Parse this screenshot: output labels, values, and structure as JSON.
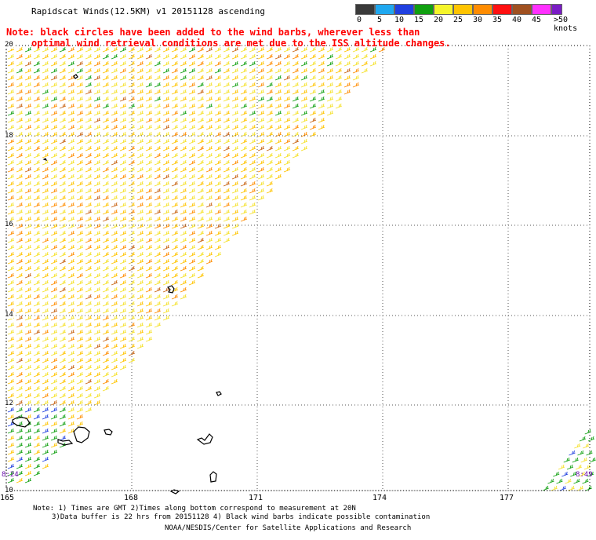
{
  "title": "Rapidscat Winds(12.5KM) v1 20151128 ascending",
  "note": {
    "line1": "Note: black circles have been added to the wind barbs, wherever less than",
    "line2": "optimal wind retrieval conditions are met due to the ISS altitude changes."
  },
  "legend": {
    "labels": [
      "0",
      "5",
      "10",
      "15",
      "20",
      "25",
      "30",
      "35",
      "40",
      "45",
      ">50 knots"
    ],
    "colors": [
      "#3a3a3a",
      "#1fa8f0",
      "#2040e0",
      "#10a010",
      "#f5f52a",
      "#ffc400",
      "#ff8c00",
      "#ff1010",
      "#a05020",
      "#ff30ff",
      "#7a1cc4"
    ]
  },
  "axes": {
    "lat_labels": [
      "20",
      "18",
      "16",
      "14",
      "12",
      "10"
    ],
    "lon_labels": [
      "165",
      "168",
      "171",
      "174",
      "177"
    ]
  },
  "time_labels": {
    "left": "8:24",
    "right": "8:49"
  },
  "footer": {
    "line1": "Note: 1) Times are GMT 2)Times along bottom correspond to measurement at 20N",
    "line2": "3)Data buffer is 22 hrs from 20151128 4) Black wind barbs indicate possible contamination",
    "line3": "NOAA/NESDIS/Center for Satellite Applications and Research"
  },
  "colors": {
    "note": "#ff0000",
    "grid": "#555555",
    "time_label": "#6a0dad"
  }
}
